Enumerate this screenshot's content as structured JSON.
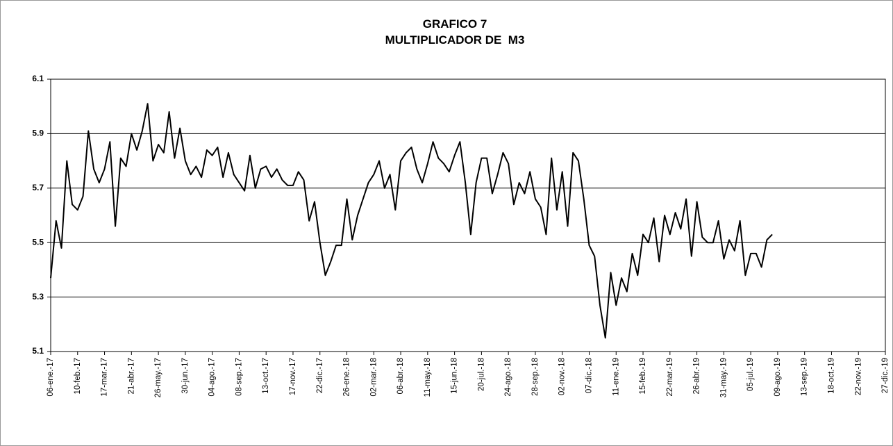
{
  "chart_data": {
    "type": "line",
    "title": [
      "GRAFICO 7",
      "MULTIPLICADOR DE  M3"
    ],
    "x": [
      "2017-01-06",
      "2017-01-13",
      "2017-01-20",
      "2017-01-27",
      "2017-02-03",
      "2017-02-10",
      "2017-02-17",
      "2017-02-24",
      "2017-03-03",
      "2017-03-10",
      "2017-03-17",
      "2017-03-24",
      "2017-03-31",
      "2017-04-07",
      "2017-04-14",
      "2017-04-21",
      "2017-04-28",
      "2017-05-05",
      "2017-05-12",
      "2017-05-19",
      "2017-05-26",
      "2017-06-02",
      "2017-06-09",
      "2017-06-16",
      "2017-06-23",
      "2017-06-30",
      "2017-07-07",
      "2017-07-14",
      "2017-07-21",
      "2017-07-28",
      "2017-08-04",
      "2017-08-11",
      "2017-08-18",
      "2017-08-25",
      "2017-09-01",
      "2017-09-08",
      "2017-09-15",
      "2017-09-22",
      "2017-09-29",
      "2017-10-06",
      "2017-10-13",
      "2017-10-20",
      "2017-10-27",
      "2017-11-03",
      "2017-11-10",
      "2017-11-17",
      "2017-11-24",
      "2017-12-01",
      "2017-12-08",
      "2017-12-15",
      "2017-12-22",
      "2017-12-29",
      "2018-01-05",
      "2018-01-12",
      "2018-01-19",
      "2018-01-26",
      "2018-02-02",
      "2018-02-09",
      "2018-02-16",
      "2018-02-23",
      "2018-03-02",
      "2018-03-09",
      "2018-03-16",
      "2018-03-23",
      "2018-03-30",
      "2018-04-06",
      "2018-04-13",
      "2018-04-20",
      "2018-04-27",
      "2018-05-04",
      "2018-05-11",
      "2018-05-18",
      "2018-05-25",
      "2018-06-01",
      "2018-06-08",
      "2018-06-15",
      "2018-06-22",
      "2018-06-29",
      "2018-07-06",
      "2018-07-13",
      "2018-07-20",
      "2018-07-27",
      "2018-08-03",
      "2018-08-10",
      "2018-08-17",
      "2018-08-24",
      "2018-08-31",
      "2018-09-07",
      "2018-09-14",
      "2018-09-21",
      "2018-09-28",
      "2018-10-05",
      "2018-10-12",
      "2018-10-19",
      "2018-10-26",
      "2018-11-02",
      "2018-11-09",
      "2018-11-16",
      "2018-11-23",
      "2018-11-30",
      "2018-12-07",
      "2018-12-14",
      "2018-12-21",
      "2018-12-28",
      "2019-01-04",
      "2019-01-11",
      "2019-01-18",
      "2019-01-25",
      "2019-02-01",
      "2019-02-08",
      "2019-02-15",
      "2019-02-22",
      "2019-03-01",
      "2019-03-08",
      "2019-03-15",
      "2019-03-22",
      "2019-03-29",
      "2019-04-05",
      "2019-04-12",
      "2019-04-19",
      "2019-04-26",
      "2019-05-03",
      "2019-05-10",
      "2019-05-17",
      "2019-05-24",
      "2019-05-31",
      "2019-06-07",
      "2019-06-14",
      "2019-06-21",
      "2019-06-28",
      "2019-07-05",
      "2019-07-12",
      "2019-07-19",
      "2019-07-26",
      "2019-08-02"
    ],
    "values": [
      5.37,
      5.58,
      5.48,
      5.8,
      5.64,
      5.62,
      5.67,
      5.91,
      5.77,
      5.72,
      5.77,
      5.87,
      5.56,
      5.81,
      5.78,
      5.9,
      5.84,
      5.91,
      6.01,
      5.8,
      5.86,
      5.83,
      5.98,
      5.81,
      5.92,
      5.8,
      5.75,
      5.78,
      5.74,
      5.84,
      5.82,
      5.85,
      5.74,
      5.83,
      5.75,
      5.72,
      5.69,
      5.82,
      5.7,
      5.77,
      5.78,
      5.74,
      5.77,
      5.73,
      5.71,
      5.71,
      5.76,
      5.73,
      5.58,
      5.65,
      5.5,
      5.38,
      5.43,
      5.49,
      5.49,
      5.66,
      5.51,
      5.6,
      5.66,
      5.72,
      5.75,
      5.8,
      5.7,
      5.75,
      5.62,
      5.8,
      5.83,
      5.85,
      5.77,
      5.72,
      5.79,
      5.87,
      5.81,
      5.79,
      5.76,
      5.82,
      5.87,
      5.72,
      5.53,
      5.72,
      5.81,
      5.81,
      5.68,
      5.75,
      5.83,
      5.79,
      5.64,
      5.72,
      5.68,
      5.76,
      5.66,
      5.63,
      5.53,
      5.81,
      5.62,
      5.76,
      5.56,
      5.83,
      5.8,
      5.66,
      5.49,
      5.45,
      5.27,
      5.15,
      5.39,
      5.27,
      5.37,
      5.32,
      5.46,
      5.38,
      5.53,
      5.5,
      5.59,
      5.43,
      5.6,
      5.53,
      5.61,
      5.55,
      5.66,
      5.45,
      5.65,
      5.52,
      5.5,
      5.5,
      5.58,
      5.44,
      5.51,
      5.47,
      5.58,
      5.38,
      5.46,
      5.46,
      5.41,
      5.51,
      5.53
    ],
    "color": "#000000",
    "xlim": [
      "2017-01-06",
      "2019-12-27"
    ],
    "xticks": [
      {
        "value": "2017-01-06",
        "label": "06-ene.-17"
      },
      {
        "value": "2017-02-10",
        "label": "10-feb.-17"
      },
      {
        "value": "2017-03-17",
        "label": "17-mar.-17"
      },
      {
        "value": "2017-04-21",
        "label": "21-abr.-17"
      },
      {
        "value": "2017-05-26",
        "label": "26-may.-17"
      },
      {
        "value": "2017-06-30",
        "label": "30-jun.-17"
      },
      {
        "value": "2017-08-04",
        "label": "04-ago.-17"
      },
      {
        "value": "2017-09-08",
        "label": "08-sep.-17"
      },
      {
        "value": "2017-10-13",
        "label": "13-oct.-17"
      },
      {
        "value": "2017-11-17",
        "label": "17-nov.-17"
      },
      {
        "value": "2017-12-22",
        "label": "22-dic.-17"
      },
      {
        "value": "2018-01-26",
        "label": "26-ene.-18"
      },
      {
        "value": "2018-03-02",
        "label": "02-mar.-18"
      },
      {
        "value": "2018-04-06",
        "label": "06-abr.-18"
      },
      {
        "value": "2018-05-11",
        "label": "11-may.-18"
      },
      {
        "value": "2018-06-15",
        "label": "15-jun.-18"
      },
      {
        "value": "2018-07-20",
        "label": "20-jul.-18"
      },
      {
        "value": "2018-08-24",
        "label": "24-ago.-18"
      },
      {
        "value": "2018-09-28",
        "label": "28-sep.-18"
      },
      {
        "value": "2018-11-02",
        "label": "02-nov.-18"
      },
      {
        "value": "2018-12-07",
        "label": "07-dic.-18"
      },
      {
        "value": "2019-01-11",
        "label": "11-ene.-19"
      },
      {
        "value": "2019-02-15",
        "label": "15-feb.-19"
      },
      {
        "value": "2019-03-22",
        "label": "22-mar.-19"
      },
      {
        "value": "2019-04-26",
        "label": "26-abr.-19"
      },
      {
        "value": "2019-05-31",
        "label": "31-may.-19"
      },
      {
        "value": "2019-07-05",
        "label": "05-jul.-19"
      },
      {
        "value": "2019-08-09",
        "label": "09-ago.-19"
      },
      {
        "value": "2019-09-13",
        "label": "13-sep.-19"
      },
      {
        "value": "2019-10-18",
        "label": "18-oct.-19"
      },
      {
        "value": "2019-11-22",
        "label": "22-nov.-19"
      },
      {
        "value": "2019-12-27",
        "label": "27-dic.-19"
      }
    ],
    "ylim": [
      5.1,
      6.1
    ],
    "yticks": [
      5.1,
      5.3,
      5.5,
      5.7,
      5.9,
      6.1
    ],
    "grid": true
  }
}
